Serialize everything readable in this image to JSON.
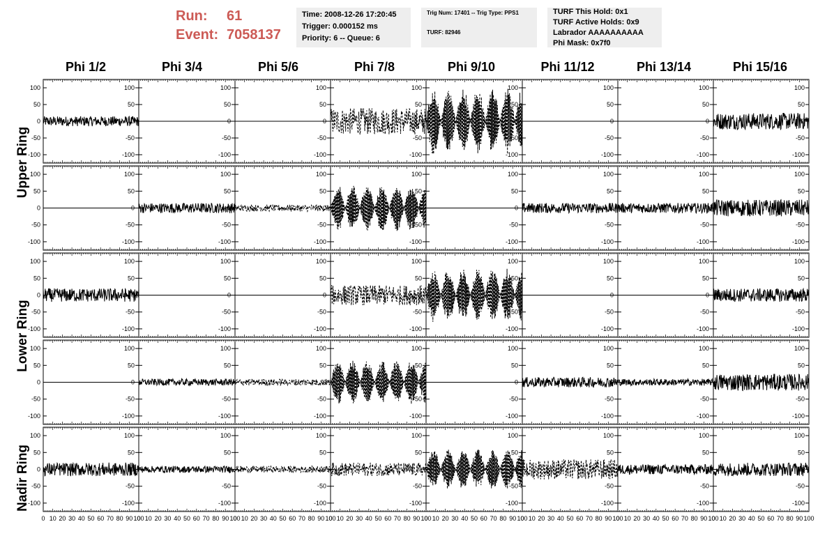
{
  "header": {
    "run_label": "Run:",
    "run_value": "61",
    "event_label": "Event:",
    "event_value": "7058137",
    "colors": {
      "run_text": "#cc5a55",
      "info_bg": "#eeeeee"
    }
  },
  "info_time": {
    "time": "Time: 2008-12-26 17:20:45",
    "trigger": "Trigger: 0.000152 ms",
    "priority": "Priority: 6 -- Queue: 6"
  },
  "info_trig": {
    "trig": "Trig Num: 17401 -- Trig Type: PPS1",
    "turf": "TURF: 82946"
  },
  "info_turf": {
    "this_hold": "TURF This Hold: 0x1",
    "active_holds": "TURF Active Holds: 0x9",
    "labrador": "Labrador AAAAAAAAAA",
    "phi_mask": "Phi Mask: 0x7f0"
  },
  "columns": [
    "Phi 1/2",
    "Phi 3/4",
    "Phi 5/6",
    "Phi 7/8",
    "Phi 9/10",
    "Phi 11/12",
    "Phi 13/14",
    "Phi 15/16"
  ],
  "rows": [
    "Upper Ring",
    "Upper Ring",
    "Lower Ring",
    "Lower Ring",
    "Nadir Ring"
  ],
  "ring_labels": [
    "Upper Ring",
    "Lower Ring",
    "Nadir Ring"
  ],
  "chart_data": {
    "type": "line",
    "grid": false,
    "x_ticks": [
      0,
      10,
      20,
      30,
      40,
      50,
      60,
      70,
      80,
      90,
      100
    ],
    "x_tick_labels": [
      "0",
      "10",
      "20",
      "30",
      "40",
      "50",
      "60",
      "70",
      "80",
      "90",
      "100"
    ],
    "xlim": [
      0,
      100
    ],
    "ylim": [
      -125,
      125
    ],
    "y_ticks": [
      -100,
      -50,
      0,
      50,
      100
    ],
    "y_tick_labels": [
      "-100",
      "-50",
      "0",
      "50",
      "100"
    ],
    "panel_grid": [
      [
        {
          "style": "solid",
          "amp": 15,
          "periodic": false
        },
        {
          "style": "flat",
          "amp": 0,
          "periodic": false
        },
        {
          "style": "flat",
          "amp": 0,
          "periodic": false
        },
        {
          "style": "dashed",
          "amp": 40,
          "periodic": false
        },
        {
          "style": "dashed",
          "amp": 100,
          "periodic": true
        },
        {
          "style": "flat",
          "amp": 0,
          "periodic": false
        },
        {
          "style": "flat",
          "amp": 0,
          "periodic": false
        },
        {
          "style": "solid",
          "amp": 25,
          "periodic": false
        }
      ],
      [
        {
          "style": "flat",
          "amp": 0,
          "periodic": false
        },
        {
          "style": "solid",
          "amp": 15,
          "periodic": false
        },
        {
          "style": "dashed",
          "amp": 10,
          "periodic": false
        },
        {
          "style": "dashed",
          "amp": 70,
          "periodic": true
        },
        {
          "style": "flat",
          "amp": 0,
          "periodic": false
        },
        {
          "style": "solid",
          "amp": 15,
          "periodic": false
        },
        {
          "style": "solid",
          "amp": 15,
          "periodic": false
        },
        {
          "style": "solid",
          "amp": 25,
          "periodic": false
        }
      ],
      [
        {
          "style": "solid",
          "amp": 20,
          "periodic": false
        },
        {
          "style": "flat",
          "amp": 0,
          "periodic": false
        },
        {
          "style": "flat",
          "amp": 0,
          "periodic": false
        },
        {
          "style": "dashed",
          "amp": 30,
          "periodic": false
        },
        {
          "style": "dashed",
          "amp": 80,
          "periodic": true
        },
        {
          "style": "flat",
          "amp": 0,
          "periodic": false
        },
        {
          "style": "flat",
          "amp": 0,
          "periodic": false
        },
        {
          "style": "solid",
          "amp": 20,
          "periodic": false
        }
      ],
      [
        {
          "style": "flat",
          "amp": 0,
          "periodic": false
        },
        {
          "style": "solid",
          "amp": 10,
          "periodic": false
        },
        {
          "style": "dashed",
          "amp": 10,
          "periodic": false
        },
        {
          "style": "dashed",
          "amp": 65,
          "periodic": true
        },
        {
          "style": "flat",
          "amp": 0,
          "periodic": false
        },
        {
          "style": "solid",
          "amp": 15,
          "periodic": false
        },
        {
          "style": "solid",
          "amp": 10,
          "periodic": false
        },
        {
          "style": "solid",
          "amp": 25,
          "periodic": false
        }
      ],
      [
        {
          "style": "solid",
          "amp": 20,
          "periodic": false
        },
        {
          "style": "solid",
          "amp": 10,
          "periodic": false
        },
        {
          "style": "dashed",
          "amp": 10,
          "periodic": false
        },
        {
          "style": "dashed",
          "amp": 20,
          "periodic": false
        },
        {
          "style": "dashed",
          "amp": 60,
          "periodic": true
        },
        {
          "style": "dashed",
          "amp": 30,
          "periodic": false
        },
        {
          "style": "solid",
          "amp": 15,
          "periodic": false
        },
        {
          "style": "solid",
          "amp": 20,
          "periodic": false
        }
      ]
    ]
  }
}
